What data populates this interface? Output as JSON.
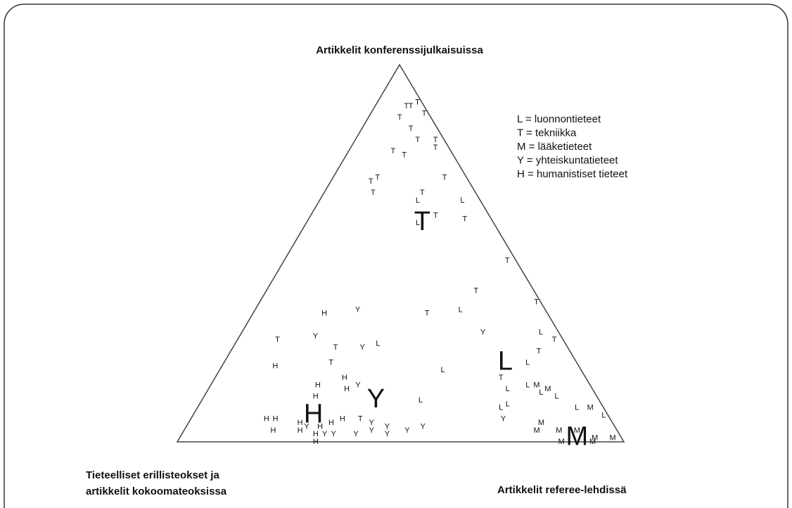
{
  "chart_data": {
    "type": "ternary",
    "axis_labels": {
      "top": "Artikkelit konferenssijulkaisuissa",
      "left": [
        "Tieteelliset erillisteokset ja",
        "artikkelit kokoomateoksissa"
      ],
      "right": "Artikkelit referee-lehdissä"
    },
    "legend": [
      "L = luonnontieteet",
      "T = tekniikka",
      "M = lääketieteet",
      "Y = yhteiskuntatieteet",
      "H = humanistiset tieteet"
    ],
    "means": [
      {
        "label": "T",
        "top": 58,
        "right": 26
      },
      {
        "label": "L",
        "top": 21,
        "right": 63
      },
      {
        "label": "M",
        "top": 1,
        "right": 89
      },
      {
        "label": "Y",
        "top": 11,
        "right": 39
      },
      {
        "label": "H",
        "top": 7,
        "right": 27
      }
    ],
    "points": [
      {
        "label": "T",
        "top": 90,
        "right": 9
      },
      {
        "label": "T",
        "top": 89,
        "right": 7
      },
      {
        "label": "T",
        "top": 89,
        "right": 8
      },
      {
        "label": "T",
        "top": 87,
        "right": 12
      },
      {
        "label": "T",
        "top": 86,
        "right": 7
      },
      {
        "label": "T",
        "top": 83,
        "right": 11
      },
      {
        "label": "T",
        "top": 80,
        "right": 14
      },
      {
        "label": "T",
        "top": 80,
        "right": 18
      },
      {
        "label": "T",
        "top": 78,
        "right": 19
      },
      {
        "label": "T",
        "top": 77,
        "right": 10
      },
      {
        "label": "T",
        "top": 76,
        "right": 13
      },
      {
        "label": "T",
        "top": 70,
        "right": 10
      },
      {
        "label": "T",
        "top": 69,
        "right": 9
      },
      {
        "label": "T",
        "top": 66,
        "right": 11
      },
      {
        "label": "T",
        "top": 66,
        "right": 22
      },
      {
        "label": "T",
        "top": 70,
        "right": 25
      },
      {
        "label": "L",
        "top": 64,
        "right": 32
      },
      {
        "label": "L",
        "top": 64,
        "right": 22
      },
      {
        "label": "T",
        "top": 59,
        "right": 35
      },
      {
        "label": "T",
        "top": 60,
        "right": 28
      },
      {
        "label": "L",
        "top": 58,
        "right": 25
      },
      {
        "label": "T",
        "top": 48,
        "right": 50
      },
      {
        "label": "T",
        "top": 40,
        "right": 47
      },
      {
        "label": "T",
        "top": 37,
        "right": 62
      },
      {
        "label": "T",
        "top": 34,
        "right": 39
      },
      {
        "label": "L",
        "top": 35,
        "right": 46
      },
      {
        "label": "Y",
        "top": 29,
        "right": 54
      },
      {
        "label": "L",
        "top": 29,
        "right": 67
      },
      {
        "label": "T",
        "top": 27,
        "right": 71
      },
      {
        "label": "T",
        "top": 24,
        "right": 69
      },
      {
        "label": "L",
        "top": 21,
        "right": 68
      },
      {
        "label": "L",
        "top": 19,
        "right": 50
      },
      {
        "label": "T",
        "top": 17,
        "right": 64
      },
      {
        "label": "L",
        "top": 14,
        "right": 67
      },
      {
        "label": "L",
        "top": 15,
        "right": 71
      },
      {
        "label": "M",
        "top": 15,
        "right": 73
      },
      {
        "label": "L",
        "top": 13,
        "right": 75
      },
      {
        "label": "M",
        "top": 14,
        "right": 76
      },
      {
        "label": "L",
        "top": 12,
        "right": 79
      },
      {
        "label": "L",
        "top": 9,
        "right": 68
      },
      {
        "label": "L",
        "top": 10,
        "right": 69
      },
      {
        "label": "Y",
        "top": 6,
        "right": 70
      },
      {
        "label": "L",
        "top": 9,
        "right": 85
      },
      {
        "label": "M",
        "top": 9,
        "right": 88
      },
      {
        "label": "L",
        "top": 7,
        "right": 92
      },
      {
        "label": "M",
        "top": 5,
        "right": 79
      },
      {
        "label": "M",
        "top": 3,
        "right": 79
      },
      {
        "label": "M",
        "top": 3,
        "right": 84
      },
      {
        "label": "M",
        "top": 3,
        "right": 88
      },
      {
        "label": "M",
        "top": 1,
        "right": 93
      },
      {
        "label": "M",
        "top": 0,
        "right": 86
      },
      {
        "label": "M",
        "top": 1,
        "right": 97
      },
      {
        "label": "M",
        "top": 0,
        "right": 93
      },
      {
        "label": "T",
        "top": 27,
        "right": 9
      },
      {
        "label": "H",
        "top": 34,
        "right": 16
      },
      {
        "label": "Y",
        "top": 35,
        "right": 23
      },
      {
        "label": "Y",
        "top": 28,
        "right": 17
      },
      {
        "label": "T",
        "top": 25,
        "right": 23
      },
      {
        "label": "Y",
        "top": 25,
        "right": 29
      },
      {
        "label": "L",
        "top": 26,
        "right": 32
      },
      {
        "label": "H",
        "top": 20,
        "right": 12
      },
      {
        "label": "T",
        "top": 21,
        "right": 24
      },
      {
        "label": "H",
        "top": 17,
        "right": 29
      },
      {
        "label": "H",
        "top": 14,
        "right": 31
      },
      {
        "label": "Y",
        "top": 15,
        "right": 33
      },
      {
        "label": "H",
        "top": 15,
        "right": 24
      },
      {
        "label": "H",
        "top": 12,
        "right": 25
      },
      {
        "label": "L",
        "top": 11,
        "right": 49
      },
      {
        "label": "H",
        "top": 6,
        "right": 17
      },
      {
        "label": "H",
        "top": 6,
        "right": 19
      },
      {
        "label": "H",
        "top": 3,
        "right": 20
      },
      {
        "label": "H",
        "top": 5,
        "right": 25
      },
      {
        "label": "Y",
        "top": 4,
        "right": 27
      },
      {
        "label": "H",
        "top": 5,
        "right": 32
      },
      {
        "label": "H",
        "top": 6,
        "right": 34
      },
      {
        "label": "T",
        "top": 6,
        "right": 38
      },
      {
        "label": "Y",
        "top": 5,
        "right": 41
      },
      {
        "label": "Y",
        "top": 4,
        "right": 45
      },
      {
        "label": "Y",
        "top": 3,
        "right": 42
      },
      {
        "label": "H",
        "top": 3,
        "right": 26
      },
      {
        "label": "H",
        "top": 2,
        "right": 30
      },
      {
        "label": "H",
        "top": 0,
        "right": 31
      },
      {
        "label": "Y",
        "top": 2,
        "right": 32
      },
      {
        "label": "Y",
        "top": 2,
        "right": 34
      },
      {
        "label": "Y",
        "top": 2,
        "right": 39
      },
      {
        "label": "Y",
        "top": 3,
        "right": 50
      },
      {
        "label": "Y",
        "top": 4,
        "right": 53
      },
      {
        "label": "Y",
        "top": 2,
        "right": 46
      },
      {
        "label": "H",
        "top": 4,
        "right": 30
      }
    ]
  }
}
